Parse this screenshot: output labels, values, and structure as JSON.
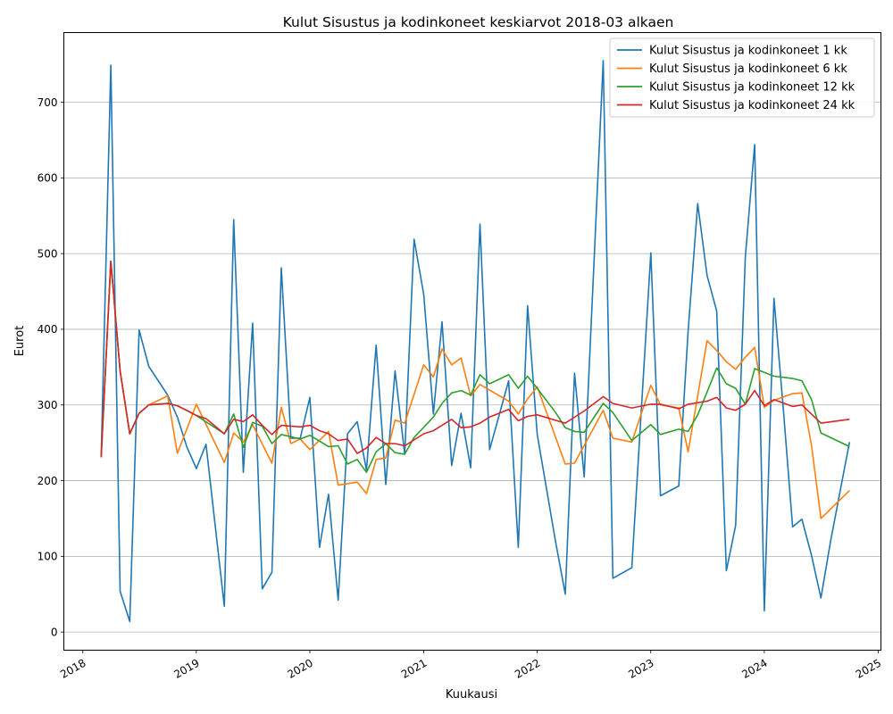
{
  "chart_data": {
    "type": "line",
    "title": "Kulut Sisustus ja kodinkoneet keskiarvot 2018-03 alkaen",
    "xlabel": "Kuukausi",
    "ylabel": "Eurot",
    "x_tick_labels": [
      "2018",
      "2019",
      "2020",
      "2021",
      "2022",
      "2023",
      "2024",
      "2025"
    ],
    "y_tick_labels": [
      "0",
      "100",
      "200",
      "300",
      "400",
      "500",
      "600",
      "700"
    ],
    "ylim": [
      -24,
      792
    ],
    "xlim": [
      "2017-11-01",
      "2025-01-10"
    ],
    "grid": "horizontal",
    "legend_position": "top-right",
    "colors": {
      "s1": "#1f77b4",
      "s6": "#ff7f0e",
      "s12": "#2ca02c",
      "s24": "#d62728"
    },
    "series": [
      {
        "name": "Kulut Sisustus ja kodinkoneet 1 kk",
        "points": [
          [
            "2018-03",
            231
          ],
          [
            "2018-04",
            749
          ],
          [
            "2018-05",
            54
          ],
          [
            "2018-06",
            14
          ],
          [
            "2018-07",
            399
          ],
          [
            "2018-08",
            351
          ],
          [
            "2018-10",
            313
          ],
          [
            "2018-11",
            284
          ],
          [
            "2018-12",
            245
          ],
          [
            "2019-01",
            216
          ],
          [
            "2019-02",
            248
          ],
          [
            "2019-04",
            34
          ],
          [
            "2019-05",
            545
          ],
          [
            "2019-06",
            211
          ],
          [
            "2019-07",
            408
          ],
          [
            "2019-08",
            57
          ],
          [
            "2019-09",
            79
          ],
          [
            "2019-10",
            481
          ],
          [
            "2019-11",
            256
          ],
          [
            "2019-12",
            256
          ],
          [
            "2020-01",
            310
          ],
          [
            "2020-02",
            112
          ],
          [
            "2020-03",
            182
          ],
          [
            "2020-04",
            42
          ],
          [
            "2020-05",
            262
          ],
          [
            "2020-06",
            278
          ],
          [
            "2020-07",
            214
          ],
          [
            "2020-08",
            379
          ],
          [
            "2020-09",
            195
          ],
          [
            "2020-10",
            345
          ],
          [
            "2020-11",
            235
          ],
          [
            "2020-12",
            519
          ],
          [
            "2021-01",
            446
          ],
          [
            "2021-02",
            288
          ],
          [
            "2021-03",
            410
          ],
          [
            "2021-04",
            220
          ],
          [
            "2021-05",
            289
          ],
          [
            "2021-06",
            217
          ],
          [
            "2021-07",
            539
          ],
          [
            "2021-08",
            241
          ],
          [
            "2021-10",
            332
          ],
          [
            "2021-11",
            112
          ],
          [
            "2021-12",
            431
          ],
          [
            "2022-01",
            261
          ],
          [
            "2022-03",
            119
          ],
          [
            "2022-04",
            50
          ],
          [
            "2022-05",
            342
          ],
          [
            "2022-06",
            205
          ],
          [
            "2022-08",
            755
          ],
          [
            "2022-09",
            71
          ],
          [
            "2022-11",
            85
          ],
          [
            "2023-01",
            501
          ],
          [
            "2023-02",
            180
          ],
          [
            "2023-04",
            193
          ],
          [
            "2023-05",
            398
          ],
          [
            "2023-06",
            566
          ],
          [
            "2023-07",
            471
          ],
          [
            "2023-08",
            424
          ],
          [
            "2023-09",
            81
          ],
          [
            "2023-10",
            141
          ],
          [
            "2023-11",
            495
          ],
          [
            "2023-12",
            644
          ],
          [
            "2024-01",
            28
          ],
          [
            "2024-02",
            441
          ],
          [
            "2024-03",
            300
          ],
          [
            "2024-04",
            139
          ],
          [
            "2024-05",
            149
          ],
          [
            "2024-06",
            101
          ],
          [
            "2024-07",
            45
          ],
          [
            "2024-08",
            120
          ],
          [
            "2024-10",
            251
          ]
        ]
      },
      {
        "name": "Kulut Sisustus ja kodinkoneet 6 kk",
        "points": [
          [
            "2018-03",
            231
          ],
          [
            "2018-04",
            490
          ],
          [
            "2018-05",
            345
          ],
          [
            "2018-06",
            262
          ],
          [
            "2018-07",
            289
          ],
          [
            "2018-08",
            300
          ],
          [
            "2018-10",
            312
          ],
          [
            "2018-11",
            236
          ],
          [
            "2019-01",
            301
          ],
          [
            "2019-04",
            224
          ],
          [
            "2019-05",
            263
          ],
          [
            "2019-06",
            251
          ],
          [
            "2019-07",
            274
          ],
          [
            "2019-09",
            223
          ],
          [
            "2019-10",
            297
          ],
          [
            "2019-11",
            249
          ],
          [
            "2019-12",
            255
          ],
          [
            "2020-01",
            241
          ],
          [
            "2020-03",
            265
          ],
          [
            "2020-04",
            194
          ],
          [
            "2020-06",
            198
          ],
          [
            "2020-07",
            183
          ],
          [
            "2020-08",
            228
          ],
          [
            "2020-09",
            230
          ],
          [
            "2020-10",
            280
          ],
          [
            "2020-11",
            276
          ],
          [
            "2021-01",
            353
          ],
          [
            "2021-02",
            337
          ],
          [
            "2021-03",
            374
          ],
          [
            "2021-04",
            353
          ],
          [
            "2021-05",
            362
          ],
          [
            "2021-06",
            312
          ],
          [
            "2021-07",
            327
          ],
          [
            "2021-10",
            305
          ],
          [
            "2021-11",
            288
          ],
          [
            "2021-12",
            308
          ],
          [
            "2022-01",
            324
          ],
          [
            "2022-04",
            222
          ],
          [
            "2022-05",
            223
          ],
          [
            "2022-08",
            293
          ],
          [
            "2022-09",
            256
          ],
          [
            "2022-11",
            251
          ],
          [
            "2023-01",
            326
          ],
          [
            "2023-02",
            300
          ],
          [
            "2023-04",
            296
          ],
          [
            "2023-05",
            238
          ],
          [
            "2023-07",
            385
          ],
          [
            "2023-08",
            372
          ],
          [
            "2023-09",
            357
          ],
          [
            "2023-10",
            347
          ],
          [
            "2023-11",
            363
          ],
          [
            "2023-12",
            376
          ],
          [
            "2024-01",
            297
          ],
          [
            "2024-02",
            306
          ],
          [
            "2024-04",
            315
          ],
          [
            "2024-05",
            316
          ],
          [
            "2024-06",
            246
          ],
          [
            "2024-07",
            150
          ],
          [
            "2024-10",
            187
          ]
        ]
      },
      {
        "name": "Kulut Sisustus ja kodinkoneet 12 kk",
        "points": [
          [
            "2018-03",
            231
          ],
          [
            "2018-04",
            490
          ],
          [
            "2018-05",
            345
          ],
          [
            "2018-06",
            262
          ],
          [
            "2018-07",
            289
          ],
          [
            "2018-08",
            300
          ],
          [
            "2018-10",
            302
          ],
          [
            "2018-11",
            299
          ],
          [
            "2019-01",
            286
          ],
          [
            "2019-04",
            262
          ],
          [
            "2019-05",
            288
          ],
          [
            "2019-06",
            244
          ],
          [
            "2019-07",
            277
          ],
          [
            "2019-08",
            272
          ],
          [
            "2019-09",
            249
          ],
          [
            "2019-10",
            261
          ],
          [
            "2019-12",
            255
          ],
          [
            "2020-01",
            260
          ],
          [
            "2020-03",
            245
          ],
          [
            "2020-04",
            246
          ],
          [
            "2020-05",
            222
          ],
          [
            "2020-06",
            228
          ],
          [
            "2020-07",
            211
          ],
          [
            "2020-08",
            238
          ],
          [
            "2020-09",
            249
          ],
          [
            "2020-10",
            237
          ],
          [
            "2020-11",
            235
          ],
          [
            "2020-12",
            257
          ],
          [
            "2021-02",
            284
          ],
          [
            "2021-03",
            302
          ],
          [
            "2021-04",
            316
          ],
          [
            "2021-05",
            319
          ],
          [
            "2021-06",
            313
          ],
          [
            "2021-07",
            340
          ],
          [
            "2021-08",
            328
          ],
          [
            "2021-10",
            340
          ],
          [
            "2021-11",
            322
          ],
          [
            "2021-12",
            338
          ],
          [
            "2022-01",
            322
          ],
          [
            "2022-03",
            290
          ],
          [
            "2022-04",
            270
          ],
          [
            "2022-05",
            265
          ],
          [
            "2022-06",
            264
          ],
          [
            "2022-08",
            302
          ],
          [
            "2022-09",
            290
          ],
          [
            "2022-11",
            253
          ],
          [
            "2023-01",
            274
          ],
          [
            "2023-02",
            261
          ],
          [
            "2023-04",
            268
          ],
          [
            "2023-05",
            265
          ],
          [
            "2023-06",
            287
          ],
          [
            "2023-07",
            317
          ],
          [
            "2023-08",
            349
          ],
          [
            "2023-09",
            328
          ],
          [
            "2023-10",
            322
          ],
          [
            "2023-11",
            301
          ],
          [
            "2023-12",
            348
          ],
          [
            "2024-02",
            338
          ],
          [
            "2024-04",
            335
          ],
          [
            "2024-05",
            332
          ],
          [
            "2024-06",
            307
          ],
          [
            "2024-07",
            263
          ],
          [
            "2024-10",
            245
          ]
        ]
      },
      {
        "name": "Kulut Sisustus ja kodinkoneet 24 kk",
        "points": [
          [
            "2018-03",
            231
          ],
          [
            "2018-04",
            490
          ],
          [
            "2018-05",
            345
          ],
          [
            "2018-06",
            262
          ],
          [
            "2018-07",
            289
          ],
          [
            "2018-08",
            300
          ],
          [
            "2018-10",
            302
          ],
          [
            "2018-11",
            299
          ],
          [
            "2018-12",
            293
          ],
          [
            "2019-01",
            286
          ],
          [
            "2019-02",
            282
          ],
          [
            "2019-04",
            262
          ],
          [
            "2019-05",
            281
          ],
          [
            "2019-06",
            278
          ],
          [
            "2019-07",
            287
          ],
          [
            "2019-08",
            273
          ],
          [
            "2019-09",
            261
          ],
          [
            "2019-10",
            273
          ],
          [
            "2019-12",
            271
          ],
          [
            "2020-01",
            273
          ],
          [
            "2020-02",
            266
          ],
          [
            "2020-03",
            262
          ],
          [
            "2020-04",
            253
          ],
          [
            "2020-05",
            255
          ],
          [
            "2020-06",
            236
          ],
          [
            "2020-07",
            243
          ],
          [
            "2020-08",
            257
          ],
          [
            "2020-09",
            249
          ],
          [
            "2020-10",
            249
          ],
          [
            "2020-11",
            246
          ],
          [
            "2021-01",
            262
          ],
          [
            "2021-02",
            266
          ],
          [
            "2021-04",
            281
          ],
          [
            "2021-05",
            270
          ],
          [
            "2021-06",
            271
          ],
          [
            "2021-07",
            276
          ],
          [
            "2021-08",
            284
          ],
          [
            "2021-10",
            294
          ],
          [
            "2021-11",
            279
          ],
          [
            "2021-12",
            285
          ],
          [
            "2022-01",
            287
          ],
          [
            "2022-04",
            276
          ],
          [
            "2022-06",
            292
          ],
          [
            "2022-08",
            311
          ],
          [
            "2022-09",
            302
          ],
          [
            "2022-11",
            296
          ],
          [
            "2023-01",
            301
          ],
          [
            "2023-02",
            301
          ],
          [
            "2023-04",
            295
          ],
          [
            "2023-05",
            301
          ],
          [
            "2023-07",
            305
          ],
          [
            "2023-08",
            310
          ],
          [
            "2023-09",
            296
          ],
          [
            "2023-10",
            293
          ],
          [
            "2023-11",
            301
          ],
          [
            "2023-12",
            319
          ],
          [
            "2024-01",
            299
          ],
          [
            "2024-02",
            307
          ],
          [
            "2024-04",
            298
          ],
          [
            "2024-05",
            300
          ],
          [
            "2024-07",
            276
          ],
          [
            "2024-10",
            281
          ]
        ]
      }
    ]
  }
}
